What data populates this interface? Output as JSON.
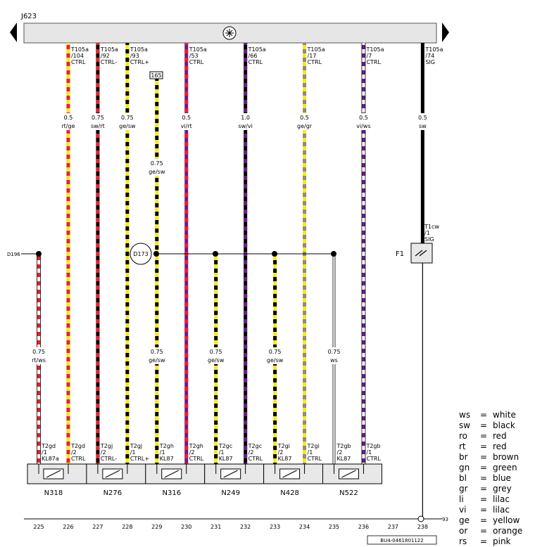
{
  "ecu": {
    "name": "J623"
  },
  "left_node": "D196",
  "junction": "D173",
  "fuse": {
    "name": "F1",
    "pin": "T1cw",
    "pin_no": "/1",
    "signal": "SIG"
  },
  "connector_165": "165",
  "ground_ref": "93",
  "doc_id": "BU4-0461801122",
  "top_wires": [
    {
      "conn": "T105a",
      "pin": "/104",
      "signal": "CTRL",
      "size": "0.5",
      "color": "rt/ge",
      "track": "226"
    },
    {
      "conn": "T105a",
      "pin": "/92",
      "signal": "CTRL-",
      "size": "0.75",
      "color": "sw/rt",
      "track": "227"
    },
    {
      "conn": "T105a",
      "pin": "/93",
      "signal": "CTRL+",
      "size": "0.75",
      "color": "ge/sw",
      "track": "228"
    },
    {
      "conn": "T105a",
      "pin": "/53",
      "signal": "CTRL",
      "size": "0.5",
      "color": "vi/rt",
      "track": "230"
    },
    {
      "conn": "T105a",
      "pin": "/66",
      "signal": "CTRL",
      "size": "1.0",
      "color": "sw/vi",
      "track": "232"
    },
    {
      "conn": "T105a",
      "pin": "/17",
      "signal": "CTRL",
      "size": "0.5",
      "color": "ge/gr",
      "track": "234"
    },
    {
      "conn": "T105a",
      "pin": "/7",
      "signal": "CTRL",
      "size": "0.5",
      "color": "vi/ws",
      "track": "236"
    },
    {
      "conn": "T105a",
      "pin": "/74",
      "signal": "SIG",
      "size": "0.5",
      "color": "sw",
      "track": "238"
    }
  ],
  "mid_wire_229": {
    "size": "0.75",
    "color": "ge/sw"
  },
  "lower_wires": [
    {
      "size": "0.75",
      "color": "rt/ws",
      "track": "225"
    },
    {
      "size": "0.75",
      "color": "ge/sw",
      "track": "229"
    },
    {
      "size": "0.75",
      "color": "ge/sw",
      "track": "231"
    },
    {
      "size": "0.75",
      "color": "ge/sw",
      "track": "233"
    },
    {
      "size": "0.75",
      "color": "ws",
      "track": "235"
    }
  ],
  "components": [
    {
      "name": "N318",
      "pins": [
        {
          "conn": "T2gd",
          "no": "/1",
          "sig": "KL87a"
        },
        {
          "conn": "T2gd",
          "no": "/2",
          "sig": "CTRL"
        }
      ]
    },
    {
      "name": "N276",
      "pins": [
        {
          "conn": "T2gj",
          "no": "/2",
          "sig": "CTRL-"
        },
        {
          "conn": "T2gj",
          "no": "/1",
          "sig": "CTRL+"
        }
      ]
    },
    {
      "name": "N316",
      "pins": [
        {
          "conn": "T2gh",
          "no": "/1",
          "sig": "KL87"
        },
        {
          "conn": "T2gh",
          "no": "/2",
          "sig": "CTRL"
        }
      ]
    },
    {
      "name": "N249",
      "pins": [
        {
          "conn": "T2gc",
          "no": "/1",
          "sig": "KL87"
        },
        {
          "conn": "T2gc",
          "no": "/2",
          "sig": "CTRL"
        }
      ]
    },
    {
      "name": "N428",
      "pins": [
        {
          "conn": "T2gi",
          "no": "/2",
          "sig": "KL87"
        },
        {
          "conn": "T2gi",
          "no": "/1",
          "sig": "CTRL"
        }
      ]
    },
    {
      "name": "N522",
      "pins": [
        {
          "conn": "T2gb",
          "no": "/2",
          "sig": "KL87"
        },
        {
          "conn": "T2gb",
          "no": "/1",
          "sig": "CTRL"
        }
      ]
    }
  ],
  "tracks": [
    "225",
    "226",
    "227",
    "228",
    "229",
    "230",
    "231",
    "232",
    "233",
    "234",
    "235",
    "236",
    "237",
    "238"
  ],
  "legend": [
    {
      "code": "ws",
      "eq": "=",
      "name": "white"
    },
    {
      "code": "sw",
      "eq": "=",
      "name": "black"
    },
    {
      "code": "ro",
      "eq": "=",
      "name": "red"
    },
    {
      "code": "rt",
      "eq": "=",
      "name": "red"
    },
    {
      "code": "br",
      "eq": "=",
      "name": "brown"
    },
    {
      "code": "gn",
      "eq": "=",
      "name": "green"
    },
    {
      "code": "bl",
      "eq": "=",
      "name": "blue"
    },
    {
      "code": "gr",
      "eq": "=",
      "name": "grey"
    },
    {
      "code": "li",
      "eq": "=",
      "name": "lilac"
    },
    {
      "code": "vi",
      "eq": "=",
      "name": "lilac"
    },
    {
      "code": "ge",
      "eq": "=",
      "name": "yellow"
    },
    {
      "code": "or",
      "eq": "=",
      "name": "orange"
    },
    {
      "code": "rs",
      "eq": "=",
      "name": "pink"
    }
  ],
  "palette": {
    "red": "#e8222a",
    "yellow": "#f5ea1a",
    "black": "#000000",
    "violet": "#6a1b8a",
    "grey": "#8a8a8a",
    "white": "#ffffff",
    "bus": "#e6e6e6",
    "box": "#e8e8e8"
  }
}
